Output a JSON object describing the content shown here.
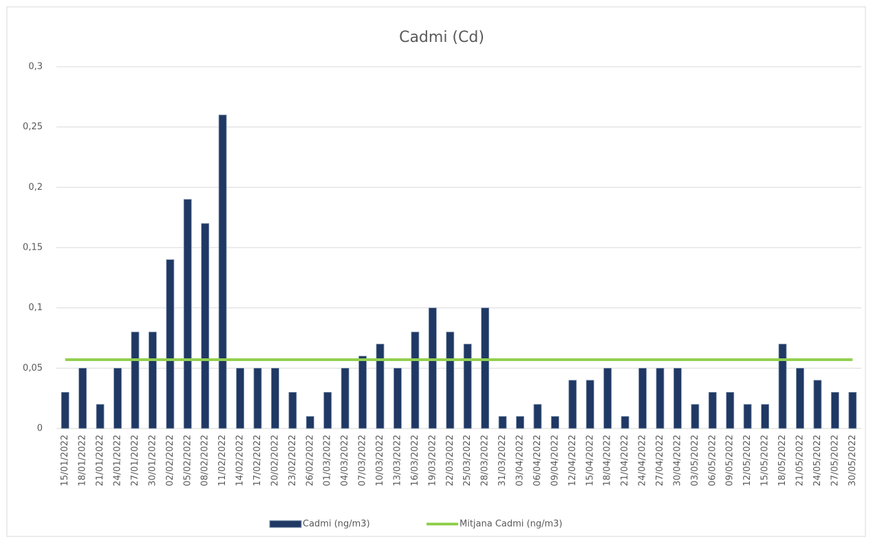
{
  "chart_data": {
    "type": "bar",
    "title": "Cadmi (Cd)",
    "categories": [
      "15/01/2022",
      "18/01/2022",
      "21/01/2022",
      "24/01/2022",
      "27/01/2022",
      "30/01/2022",
      "02/02/2022",
      "05/02/2022",
      "08/02/2022",
      "11/02/2022",
      "14/02/2022",
      "17/02/2022",
      "20/02/2022",
      "23/02/2022",
      "26/02/2022",
      "01/03/2022",
      "04/03/2022",
      "07/03/2022",
      "10/03/2022",
      "13/03/2022",
      "16/03/2022",
      "19/03/2022",
      "22/03/2022",
      "25/03/2022",
      "28/03/2022",
      "31/03/2022",
      "03/04/2022",
      "06/04/2022",
      "09/04/2022",
      "12/04/2022",
      "15/04/2022",
      "18/04/2022",
      "21/04/2022",
      "24/04/2022",
      "27/04/2022",
      "30/04/2022",
      "03/05/2022",
      "06/05/2022",
      "09/05/2022",
      "12/05/2022",
      "15/05/2022",
      "18/05/2022",
      "21/05/2022",
      "24/05/2022",
      "27/05/2022",
      "30/05/2022"
    ],
    "series": [
      {
        "name": "Cadmi (ng/m3)",
        "type": "bar",
        "color": "#1f3864",
        "values": [
          0.03,
          0.05,
          0.02,
          0.05,
          0.08,
          0.08,
          0.14,
          0.19,
          0.17,
          0.26,
          0.05,
          0.05,
          0.05,
          0.03,
          0.01,
          0.03,
          0.05,
          0.06,
          0.07,
          0.05,
          0.08,
          0.1,
          0.08,
          0.07,
          0.1,
          0.01,
          0.01,
          0.02,
          0.01,
          0.04,
          0.04,
          0.05,
          0.01,
          0.05,
          0.05,
          0.05,
          0.02,
          0.03,
          0.03,
          0.02,
          0.02,
          0.07,
          0.05,
          0.04,
          0.03,
          0.03
        ]
      },
      {
        "name": "Mitjana Cadmi (ng/m3)",
        "type": "line",
        "color": "#92d050",
        "values": [
          0.057,
          0.057,
          0.057,
          0.057,
          0.057,
          0.057,
          0.057,
          0.057,
          0.057,
          0.057,
          0.057,
          0.057,
          0.057,
          0.057,
          0.057,
          0.057,
          0.057,
          0.057,
          0.057,
          0.057,
          0.057,
          0.057,
          0.057,
          0.057,
          0.057,
          0.057,
          0.057,
          0.057,
          0.057,
          0.057,
          0.057,
          0.057,
          0.057,
          0.057,
          0.057,
          0.057,
          0.057,
          0.057,
          0.057,
          0.057,
          0.057,
          0.057,
          0.057,
          0.057,
          0.057,
          0.057
        ]
      }
    ],
    "ylim": [
      0,
      0.3
    ],
    "yticks": [
      0,
      {
        "value": 0.05,
        "label": "0,05"
      },
      {
        "value": 0.1,
        "label": "0,1"
      },
      {
        "value": 0.15,
        "label": "0,15"
      },
      {
        "value": 0.2,
        "label": "0,2"
      },
      {
        "value": 0.25,
        "label": "0,25"
      },
      {
        "value": 0.3,
        "label": "0,3"
      }
    ],
    "grid": true,
    "legend": "bottom"
  }
}
